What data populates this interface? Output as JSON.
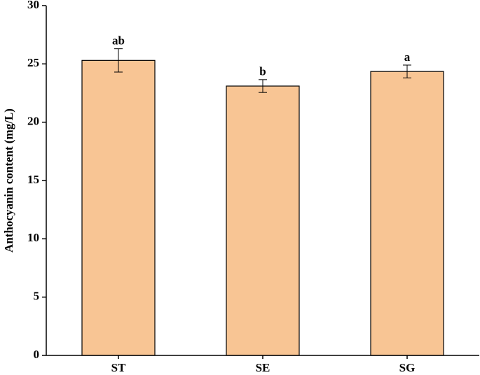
{
  "chart_data": {
    "type": "bar",
    "y_label": "Anthocyanin content (mg/L)",
    "categories": [
      "ST",
      "SE",
      "SG"
    ],
    "values": [
      25.3,
      23.1,
      24.35
    ],
    "errors": [
      1.0,
      0.55,
      0.55
    ],
    "letters": [
      "ab",
      "b",
      "a"
    ],
    "color": "#f8c594",
    "ylim": [
      0,
      30
    ],
    "yticks": [
      0,
      5,
      10,
      15,
      20,
      25,
      30
    ]
  }
}
